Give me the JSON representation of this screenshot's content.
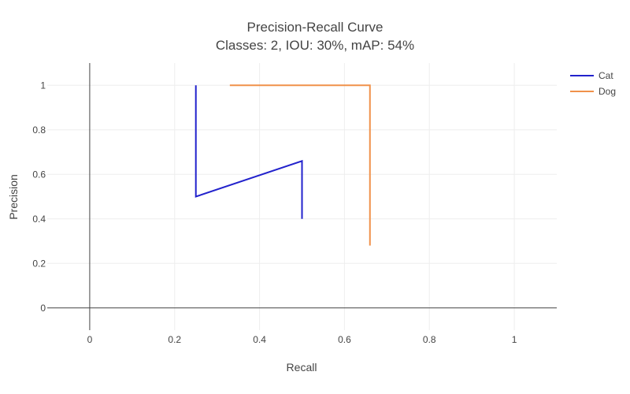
{
  "chart_data": {
    "type": "line",
    "title": "Precision-Recall Curve",
    "subtitle": "Classes: 2, IOU: 30%, mAP: 54%",
    "xlabel": "Recall",
    "ylabel": "Precision",
    "xlim": [
      -0.1,
      1.1
    ],
    "ylim": [
      -0.1,
      1.1
    ],
    "x_ticks": [
      0,
      0.2,
      0.4,
      0.6,
      0.8,
      1
    ],
    "y_ticks": [
      0,
      0.2,
      0.4,
      0.6,
      0.8,
      1
    ],
    "x_tick_labels": [
      "0",
      "0.2",
      "0.4",
      "0.6",
      "0.8",
      "1"
    ],
    "y_tick_labels": [
      "0",
      "0.2",
      "0.4",
      "0.6",
      "0.8",
      "1"
    ],
    "grid": true,
    "legend_position": "top-right",
    "series": [
      {
        "name": "Cat",
        "color": "#2222cc",
        "points": [
          [
            0.25,
            1.0
          ],
          [
            0.25,
            0.5
          ],
          [
            0.5,
            0.66
          ],
          [
            0.5,
            0.4
          ]
        ]
      },
      {
        "name": "Dog",
        "color": "#f0914a",
        "points": [
          [
            0.33,
            1.0
          ],
          [
            0.66,
            1.0
          ],
          [
            0.66,
            0.28
          ]
        ]
      }
    ]
  }
}
